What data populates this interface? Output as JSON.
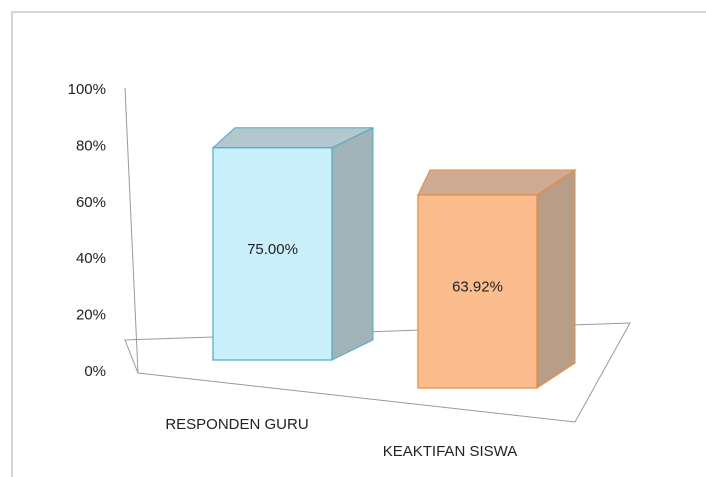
{
  "chart_data": {
    "type": "bar3d",
    "categories": [
      "RESPONDEN GURU",
      "KEAKTIFAN SISWA"
    ],
    "values": [
      75,
      63.92
    ],
    "value_labels": [
      "75.00%",
      "63.92%"
    ],
    "colors": [
      "#c9effb",
      "#fbbd8e"
    ],
    "edge_colors": [
      "#4bacc6",
      "#e8893c"
    ],
    "ylim": [
      0,
      100
    ],
    "yticks": [
      {
        "value": 0,
        "label": "0%"
      },
      {
        "value": 20,
        "label": "20%"
      },
      {
        "value": 40,
        "label": "40%"
      },
      {
        "value": 60,
        "label": "60%"
      },
      {
        "value": 80,
        "label": "80%"
      },
      {
        "value": 100,
        "label": "100%"
      }
    ]
  }
}
